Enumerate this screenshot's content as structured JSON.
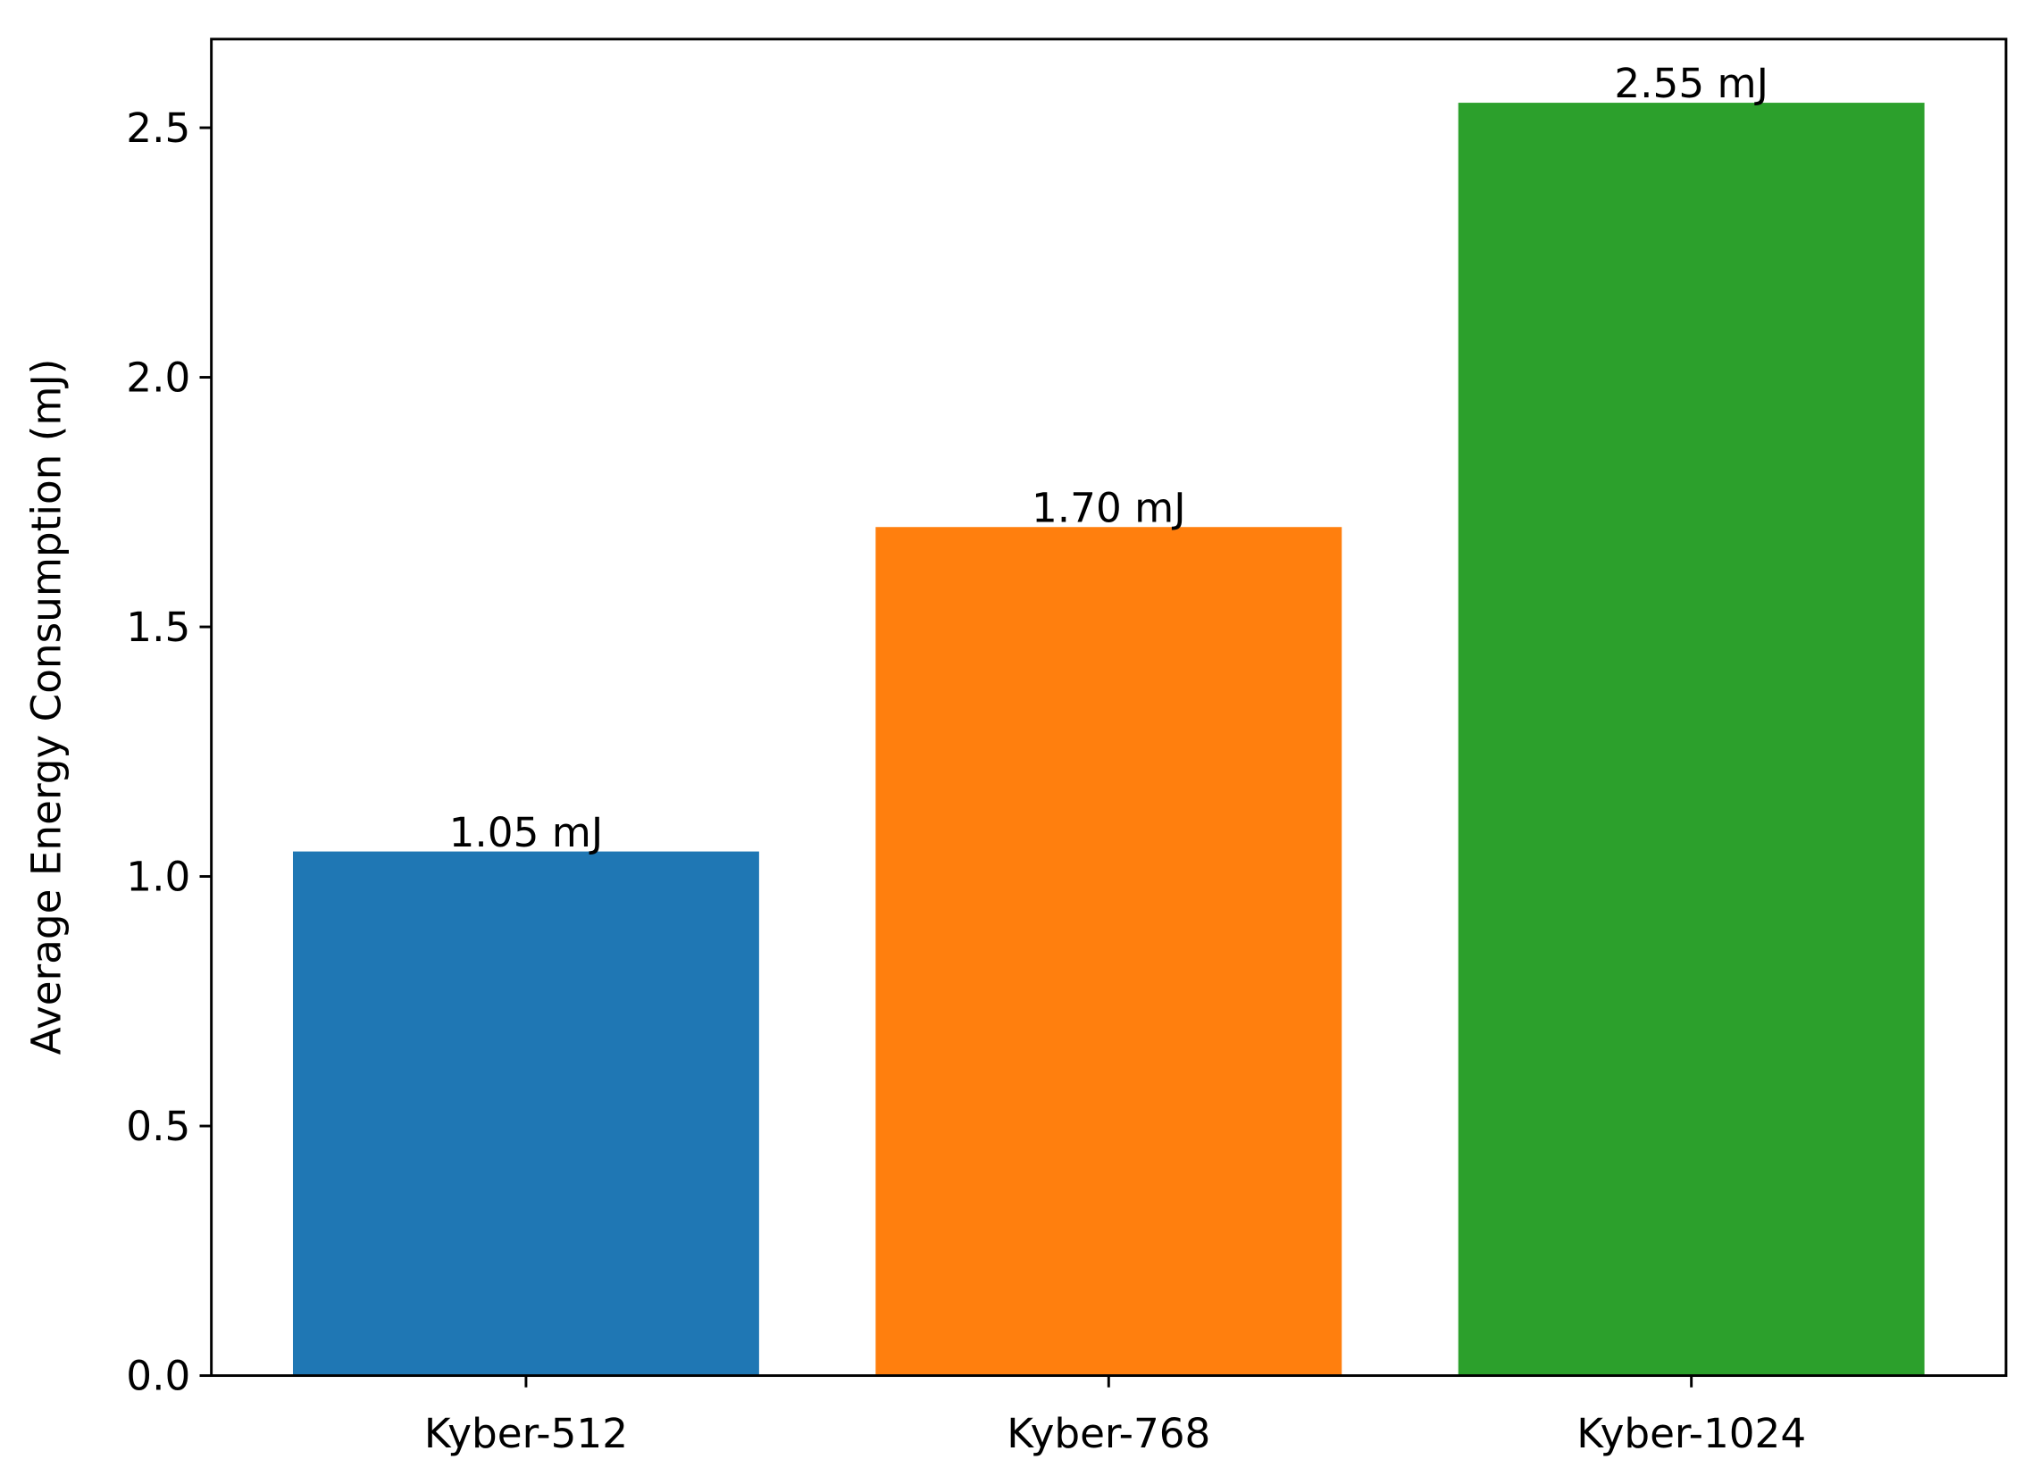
{
  "chart_data": {
    "type": "bar",
    "y_label": "Average Energy Consumption (mJ)",
    "categories": [
      "Kyber-512",
      "Kyber-768",
      "Kyber-1024"
    ],
    "values": [
      1.05,
      1.7,
      2.55
    ],
    "value_labels": [
      "1.05 mJ",
      "1.70 mJ",
      "2.55 mJ"
    ],
    "colors": [
      "#1f77b4",
      "#ff7f0e",
      "#2ca02c"
    ],
    "ylim": [
      0,
      2.6775
    ],
    "yticks": [
      {
        "value": 0,
        "label": "0.0"
      },
      {
        "value": 0.5,
        "label": "0.5"
      },
      {
        "value": 1,
        "label": "1.0"
      },
      {
        "value": 1.5,
        "label": "1.5"
      },
      {
        "value": 2,
        "label": "2.0"
      },
      {
        "value": 2.5,
        "label": "2.5"
      }
    ],
    "grid": false
  }
}
